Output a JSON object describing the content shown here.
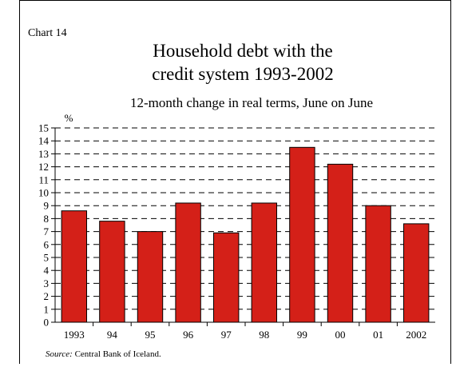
{
  "chart_number": "Chart 14",
  "chart_data": {
    "type": "bar",
    "title_lines": [
      "Household debt with the",
      "credit system 1993-2002"
    ],
    "subtitle": "12-month change in real terms, June on June",
    "ylabel": "%",
    "xlabel": "",
    "categories": [
      "1993",
      "94",
      "95",
      "96",
      "97",
      "98",
      "99",
      "00",
      "01",
      "2002"
    ],
    "values": [
      8.6,
      7.8,
      7.0,
      9.2,
      6.9,
      9.2,
      13.5,
      12.2,
      9.0,
      7.6
    ],
    "ylim": [
      0,
      15
    ],
    "yticks": [
      0,
      1,
      2,
      3,
      4,
      5,
      6,
      7,
      8,
      9,
      10,
      11,
      12,
      13,
      14,
      15
    ],
    "grid": true,
    "bar_color": "#d42018"
  },
  "source": {
    "prefix": "Source:",
    "text": " Central Bank of Iceland."
  }
}
